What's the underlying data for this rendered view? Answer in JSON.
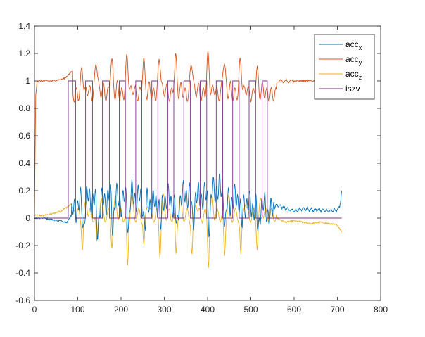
{
  "chart_data": {
    "type": "line",
    "xlim": [
      0,
      800
    ],
    "ylim": [
      -0.6,
      1.4
    ],
    "x_ticks": [
      0,
      100,
      200,
      300,
      400,
      500,
      600,
      700,
      800
    ],
    "y_ticks": [
      -0.6,
      -0.4,
      -0.2,
      0,
      0.2,
      0.4,
      0.6,
      0.8,
      1,
      1.2,
      1.4
    ],
    "x_tick_labels": [
      "0",
      "100",
      "200",
      "300",
      "400",
      "500",
      "600",
      "700",
      "800"
    ],
    "y_tick_labels": [
      "-0.6",
      "-0.4",
      "-0.2",
      "0",
      "0.2",
      "0.4",
      "0.6",
      "0.8",
      "1",
      "1.2",
      "1.4"
    ],
    "grid": false,
    "legend_position": "top-right",
    "stance_phases": [
      [
        78,
        95
      ],
      [
        118,
        134
      ],
      [
        157,
        173
      ],
      [
        196,
        210
      ],
      [
        234,
        248
      ],
      [
        271,
        285
      ],
      [
        308,
        322
      ],
      [
        345,
        360
      ],
      [
        383,
        398
      ],
      [
        420,
        435
      ],
      [
        458,
        473
      ],
      [
        496,
        511
      ],
      [
        526,
        538
      ]
    ],
    "peak_times": [
      110,
      143,
      178,
      214,
      252,
      289,
      326,
      363,
      401,
      438,
      476,
      514
    ],
    "series": [
      {
        "name": "acc",
        "subscript": "x",
        "color": "#0072BD",
        "x": [
          0,
          20,
          40,
          60,
          75,
          85,
          100,
          125,
          150,
          175,
          200,
          225,
          250,
          275,
          300,
          325,
          350,
          375,
          400,
          425,
          450,
          475,
          500,
          525,
          545,
          560,
          580,
          600,
          620,
          640,
          660,
          680,
          700,
          705,
          710
        ],
        "y": [
          0.0,
          0.0,
          -0.01,
          -0.02,
          -0.03,
          0.02,
          0.1,
          0.15,
          0.1,
          0.16,
          0.12,
          0.16,
          0.14,
          0.1,
          0.15,
          0.1,
          0.18,
          0.15,
          0.16,
          0.22,
          0.12,
          0.15,
          0.08,
          0.1,
          0.03,
          0.1,
          0.07,
          0.05,
          0.07,
          0.06,
          0.06,
          0.05,
          0.06,
          0.08,
          0.19
        ]
      },
      {
        "name": "acc",
        "subscript": "y",
        "color": "#D95319",
        "x": [
          0,
          3,
          6,
          10,
          20,
          40,
          60,
          70,
          80,
          90,
          100,
          110,
          600,
          650,
          700,
          710
        ],
        "y": [
          0.05,
          0.9,
          1.0,
          1.0,
          1.0,
          1.0,
          1.01,
          1.02,
          1.05,
          1.08,
          1.03,
          1.0,
          1.0,
          1.0,
          1.0,
          1.0
        ]
      },
      {
        "name": "acc",
        "subscript": "z",
        "color": "#EDB120",
        "x": [
          0,
          20,
          40,
          60,
          75,
          85,
          100,
          560,
          580,
          600,
          620,
          640,
          660,
          680,
          700,
          710
        ],
        "y": [
          0.02,
          0.02,
          0.03,
          0.05,
          0.08,
          0.1,
          0.0,
          0.0,
          -0.03,
          -0.02,
          -0.03,
          -0.04,
          -0.03,
          -0.04,
          -0.05,
          -0.1
        ]
      },
      {
        "name": "iszv",
        "subscript": "",
        "color": "#7E2F8E",
        "x": [
          0,
          78,
          78,
          95,
          95,
          118,
          118,
          134,
          134,
          157,
          157,
          173,
          173,
          196,
          196,
          210,
          210,
          234,
          234,
          248,
          248,
          271,
          271,
          285,
          285,
          308,
          308,
          322,
          322,
          345,
          345,
          360,
          360,
          383,
          383,
          398,
          398,
          420,
          420,
          435,
          435,
          458,
          458,
          473,
          473,
          496,
          496,
          511,
          511,
          526,
          526,
          538,
          538,
          710
        ],
        "y": [
          0,
          0,
          1,
          1,
          0,
          0,
          1,
          1,
          0,
          0,
          1,
          1,
          0,
          0,
          1,
          1,
          0,
          0,
          1,
          1,
          0,
          0,
          1,
          1,
          0,
          0,
          1,
          1,
          0,
          0,
          1,
          1,
          0,
          0,
          1,
          1,
          0,
          0,
          1,
          1,
          0,
          0,
          1,
          1,
          0,
          0,
          1,
          1,
          0,
          0,
          1,
          1,
          0,
          0
        ]
      }
    ]
  }
}
